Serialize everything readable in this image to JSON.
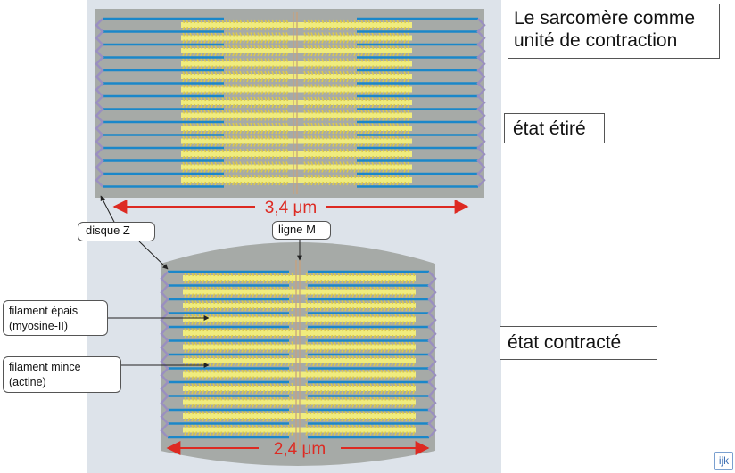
{
  "title": "Le sarcomère comme unité de contraction",
  "states": {
    "stretched": "état étiré",
    "contracted": "état contracté"
  },
  "measurements": {
    "stretched": "3,4 μm",
    "contracted": "2,4 μm"
  },
  "labels": {
    "z_disc": "disque Z",
    "m_line": "ligne M",
    "thick_filament_line1": "filament épais",
    "thick_filament_line2": "(myosine-II)",
    "thin_filament_line1": "filament mince",
    "thin_filament_line2": "(actine)"
  },
  "logo": "ijk",
  "colors": {
    "background_panel": "#dde3ea",
    "sarcomere": "#a6aaa7",
    "thin_filament": "#1a87c9",
    "thick_filament": "#f0ec7e",
    "myosin_heads": "#dcc94a",
    "z_disc": "#9a8fc0",
    "m_line": "#c9a27c",
    "arrow": "#dd2a22"
  }
}
